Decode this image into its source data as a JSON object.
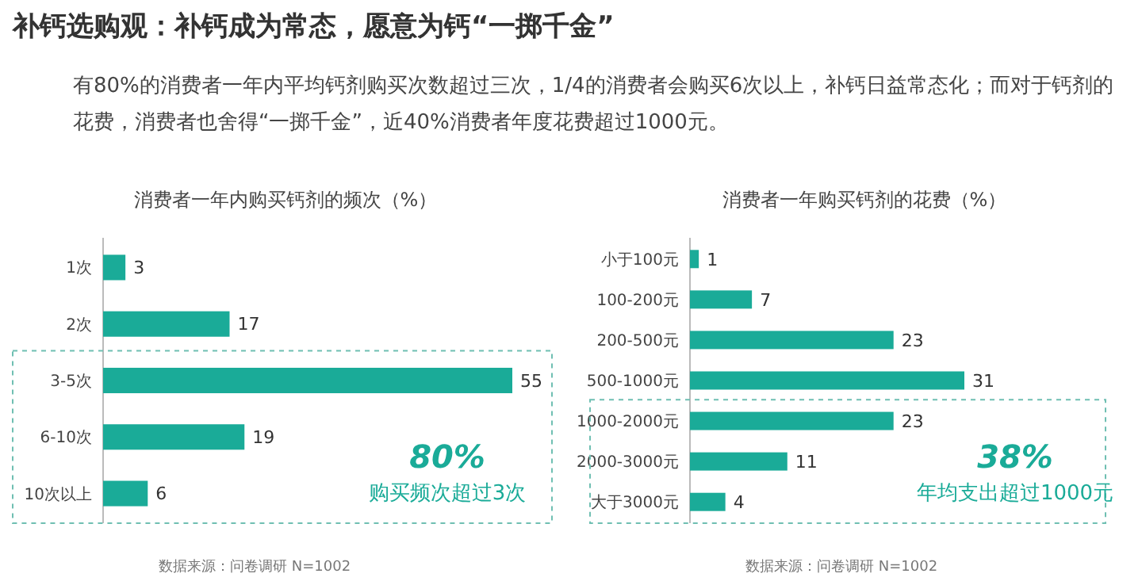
{
  "chart_data": [
    {
      "type": "other",
      "title": "补钙选购观：补钙成为常态，愿意为钙“一掷千金”",
      "subtitle": "有80%的消费者一年内平均钙剂购买次数超过三次，1/4的消费者会购买6次以上，补钙日益常态化；而对于钙剂的花费，消费者也舍得“一掷千金”，近40%消费者年度花费超过1000元。"
    },
    {
      "type": "bar",
      "orientation": "horizontal",
      "title": "消费者一年内购买钙剂的频次（%）",
      "categories": [
        "1次",
        "2次",
        "3-5次",
        "6-10次",
        "10次以上"
      ],
      "values": [
        3,
        17,
        55,
        19,
        6
      ],
      "color": "#1aab98",
      "data_labels": true,
      "annotations": [
        "80%",
        "购买频次超过3次",
        "数据来源：问卷调研 N=1002"
      ]
    },
    {
      "type": "bar",
      "orientation": "horizontal",
      "title": "消费者一年购买钙剂的花费（%）",
      "categories": [
        "小于100元",
        "100-200元",
        "200-500元",
        "500-1000元",
        "1000-2000元",
        "2000-3000元",
        "大于3000元"
      ],
      "values": [
        1,
        7,
        23,
        31,
        23,
        11,
        4
      ],
      "color": "#1aab98",
      "data_labels": true,
      "annotations": [
        "38%",
        "年均支出超过1000元",
        "数据来源：问卷调研 N=1002"
      ]
    }
  ]
}
